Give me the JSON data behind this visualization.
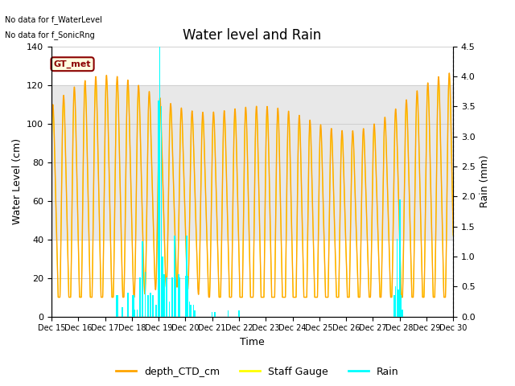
{
  "title": "Water level and Rain",
  "xlabel": "Time",
  "ylabel_left": "Water Level (cm)",
  "ylabel_right": "Rain (mm)",
  "ylim_left": [
    0,
    140
  ],
  "ylim_right": [
    0,
    4.5
  ],
  "yticks_left": [
    0,
    20,
    40,
    60,
    80,
    100,
    120,
    140
  ],
  "yticks_right": [
    0.0,
    0.5,
    1.0,
    1.5,
    2.0,
    2.5,
    3.0,
    3.5,
    4.0,
    4.5
  ],
  "xtick_labels": [
    "Dec 15",
    "Dec 16",
    "Dec 17",
    "Dec 18",
    "Dec 19",
    "Dec 20",
    "Dec 21",
    "Dec 22",
    "Dec 23",
    "Dec 24",
    "Dec 25",
    "Dec 26",
    "Dec 27",
    "Dec 28",
    "Dec 29",
    "Dec 30"
  ],
  "color_ctd": "#FFA500",
  "color_staff": "#FFFF00",
  "color_rain": "#00FFFF",
  "grid_color": "#d0d0d0",
  "shaded_ylim": [
    40,
    120
  ],
  "shaded_color": "#e8e8e8",
  "no_data_text1": "No data for f_WaterLevel",
  "no_data_text2": "No data for f_SonicRng",
  "gt_met_label": "GT_met",
  "legend_labels": [
    "depth_CTD_cm",
    "Staff Gauge",
    "Rain"
  ],
  "title_fontsize": 12,
  "axis_fontsize": 9,
  "tick_fontsize": 8
}
